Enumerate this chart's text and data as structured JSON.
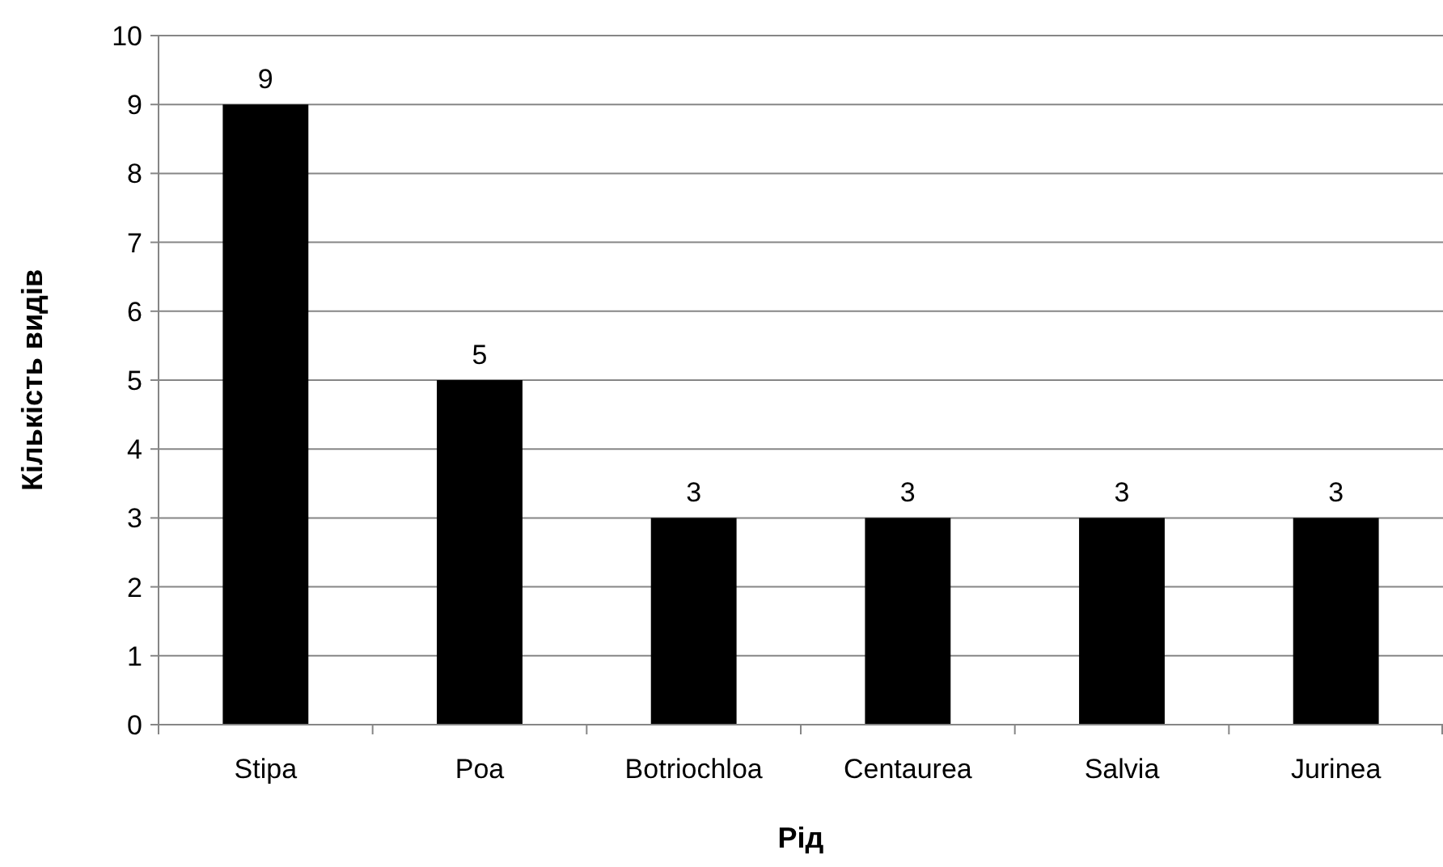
{
  "chart_data": {
    "type": "bar",
    "xlabel": "Рід",
    "ylabel": "Кількість видів",
    "categories": [
      "Stipa",
      "Poa",
      "Botriochloa",
      "Centaurea",
      "Salvia",
      "Jurinea"
    ],
    "values": [
      9,
      5,
      3,
      3,
      3,
      3
    ],
    "color": "#000000",
    "ylim": [
      0,
      10
    ],
    "yticks": [
      0,
      1,
      2,
      3,
      4,
      5,
      6,
      7,
      8,
      9,
      10
    ],
    "grid": "y",
    "data_labels": true
  }
}
